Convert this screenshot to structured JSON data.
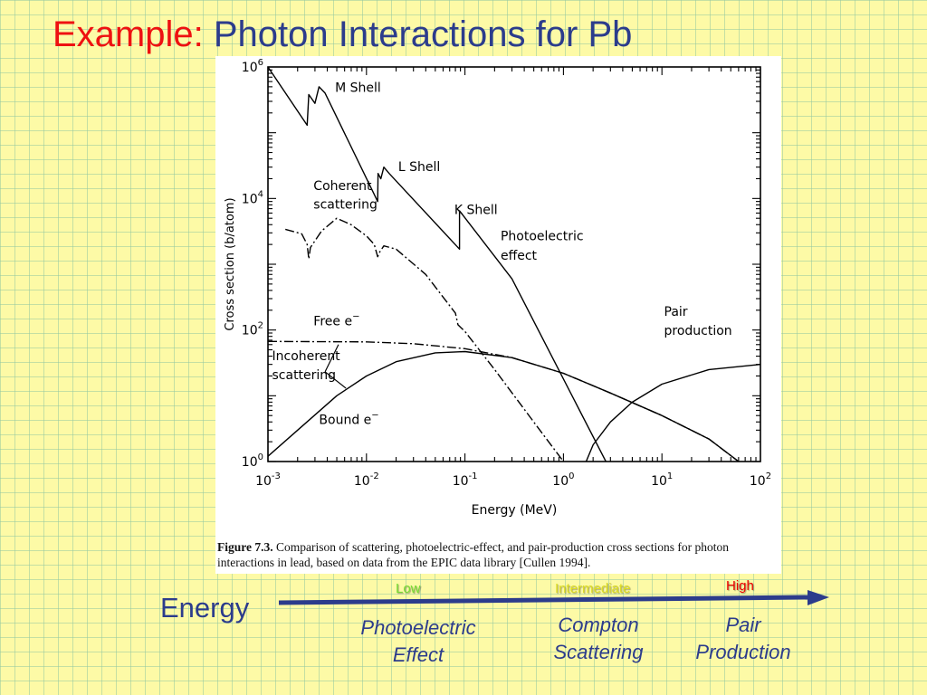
{
  "slide": {
    "title_prefix": "Example:",
    "title_main": "Photon Interactions for Pb"
  },
  "figure": {
    "caption_bold": "Figure 7.3.",
    "caption_text": "Comparison of scattering, photoelectric-effect, and pair-production cross sections for photon interactions in lead, based on data from the EPIC data library [Cullen 1994]."
  },
  "chart_data": {
    "type": "line",
    "xlabel": "Energy (MeV)",
    "ylabel": "Cross section (b/atom)",
    "x_scale": "log",
    "y_scale": "log",
    "xlim": [
      0.001,
      100
    ],
    "ylim": [
      1,
      1000000
    ],
    "x_ticks": [
      {
        "value": 0.001,
        "base": "10",
        "exp": "-3"
      },
      {
        "value": 0.01,
        "base": "10",
        "exp": "-2"
      },
      {
        "value": 0.1,
        "base": "10",
        "exp": "-1"
      },
      {
        "value": 1,
        "base": "10",
        "exp": "0"
      },
      {
        "value": 10,
        "base": "10",
        "exp": "1"
      },
      {
        "value": 100,
        "base": "10",
        "exp": "2"
      }
    ],
    "y_ticks": [
      {
        "value": 1,
        "base": "10",
        "exp": "0"
      },
      {
        "value": 100,
        "base": "10",
        "exp": "2"
      },
      {
        "value": 10000,
        "base": "10",
        "exp": "4"
      },
      {
        "value": 1000000,
        "base": "10",
        "exp": "6"
      }
    ],
    "grid": false,
    "series": [
      {
        "name": "Photoelectric effect",
        "style": "solid",
        "points": [
          [
            0.001,
            1000000
          ],
          [
            0.0025,
            130000
          ],
          [
            0.0026,
            380000
          ],
          [
            0.003,
            280000
          ],
          [
            0.0033,
            500000
          ],
          [
            0.0038,
            400000
          ],
          [
            0.013,
            9000
          ],
          [
            0.0131,
            24000
          ],
          [
            0.014,
            20000
          ],
          [
            0.015,
            30000
          ],
          [
            0.017,
            24000
          ],
          [
            0.088,
            1700
          ],
          [
            0.0881,
            6500
          ],
          [
            0.3,
            600
          ],
          [
            2.7,
            1
          ]
        ]
      },
      {
        "name": "Coherent scattering",
        "style": "dashdot",
        "points": [
          [
            0.0015,
            3400
          ],
          [
            0.0022,
            2900
          ],
          [
            0.0025,
            2000
          ],
          [
            0.0026,
            1200
          ],
          [
            0.0027,
            1800
          ],
          [
            0.0035,
            3200
          ],
          [
            0.005,
            5000
          ],
          [
            0.007,
            4000
          ],
          [
            0.01,
            2700
          ],
          [
            0.012,
            2000
          ],
          [
            0.013,
            1300
          ],
          [
            0.0135,
            1500
          ],
          [
            0.015,
            1900
          ],
          [
            0.02,
            1700
          ],
          [
            0.04,
            700
          ],
          [
            0.08,
            180
          ],
          [
            0.085,
            120
          ],
          [
            0.1,
            95
          ],
          [
            0.2,
            25
          ],
          [
            0.5,
            4
          ],
          [
            1,
            1
          ]
        ]
      },
      {
        "name": "Free e",
        "style": "dashdot",
        "points": [
          [
            0.001,
            67
          ],
          [
            0.01,
            66
          ],
          [
            0.03,
            62
          ],
          [
            0.1,
            52
          ],
          [
            0.3,
            38
          ],
          [
            1,
            22
          ],
          [
            3,
            11
          ],
          [
            10,
            5
          ],
          [
            30,
            2.2
          ],
          [
            60,
            1
          ]
        ]
      },
      {
        "name": "Bound e",
        "style": "solid",
        "points": [
          [
            0.001,
            1.2
          ],
          [
            0.002,
            3
          ],
          [
            0.005,
            10
          ],
          [
            0.01,
            20
          ],
          [
            0.02,
            33
          ],
          [
            0.05,
            45
          ],
          [
            0.1,
            47
          ],
          [
            0.3,
            38
          ],
          [
            1,
            22
          ],
          [
            3,
            11
          ],
          [
            10,
            5
          ],
          [
            30,
            2.2
          ],
          [
            60,
            1
          ]
        ]
      },
      {
        "name": "Pair production",
        "style": "solid",
        "points": [
          [
            1.7,
            1
          ],
          [
            2,
            1.8
          ],
          [
            3,
            4
          ],
          [
            5,
            8
          ],
          [
            10,
            15
          ],
          [
            30,
            25
          ],
          [
            100,
            30
          ]
        ]
      }
    ],
    "annotations": [
      {
        "text": "M Shell",
        "x": 0.0048,
        "y": 420000
      },
      {
        "text": "L Shell",
        "x": 0.021,
        "y": 26000
      },
      {
        "text": "K Shell",
        "x": 0.078,
        "y": 5800
      },
      {
        "text": "Coherent",
        "x": 0.0029,
        "y": 13500
      },
      {
        "text": "scattering",
        "x": 0.0029,
        "y": 7000
      },
      {
        "text": "Photoelectric",
        "x": 0.23,
        "y": 2300
      },
      {
        "text": "effect",
        "x": 0.23,
        "y": 1170
      },
      {
        "text": "Pair",
        "x": 10.5,
        "y": 165
      },
      {
        "text": "production",
        "x": 10.5,
        "y": 85
      },
      {
        "text": "Free e",
        "x": 0.0029,
        "y": 118,
        "sup": "−"
      },
      {
        "text": "Incoherent",
        "x": 0.0011,
        "y": 35
      },
      {
        "text": "scattering",
        "x": 0.0011,
        "y": 18
      },
      {
        "text": "Bound e",
        "x": 0.0033,
        "y": 3.7,
        "sup": "−"
      }
    ]
  },
  "energy_scale": {
    "label": "Energy",
    "arrow_color": "#2c3c8c",
    "levels": [
      {
        "label": "Low",
        "color": "#77dd33"
      },
      {
        "label": "Intermediate",
        "color": "#dddd22"
      },
      {
        "label": "High",
        "color": "#ee0000"
      }
    ],
    "processes": [
      {
        "line1": "Photoelectric",
        "line2": "Effect"
      },
      {
        "line1": "Compton",
        "line2": "Scattering"
      },
      {
        "line1": "Pair",
        "line2": "Production"
      }
    ]
  }
}
